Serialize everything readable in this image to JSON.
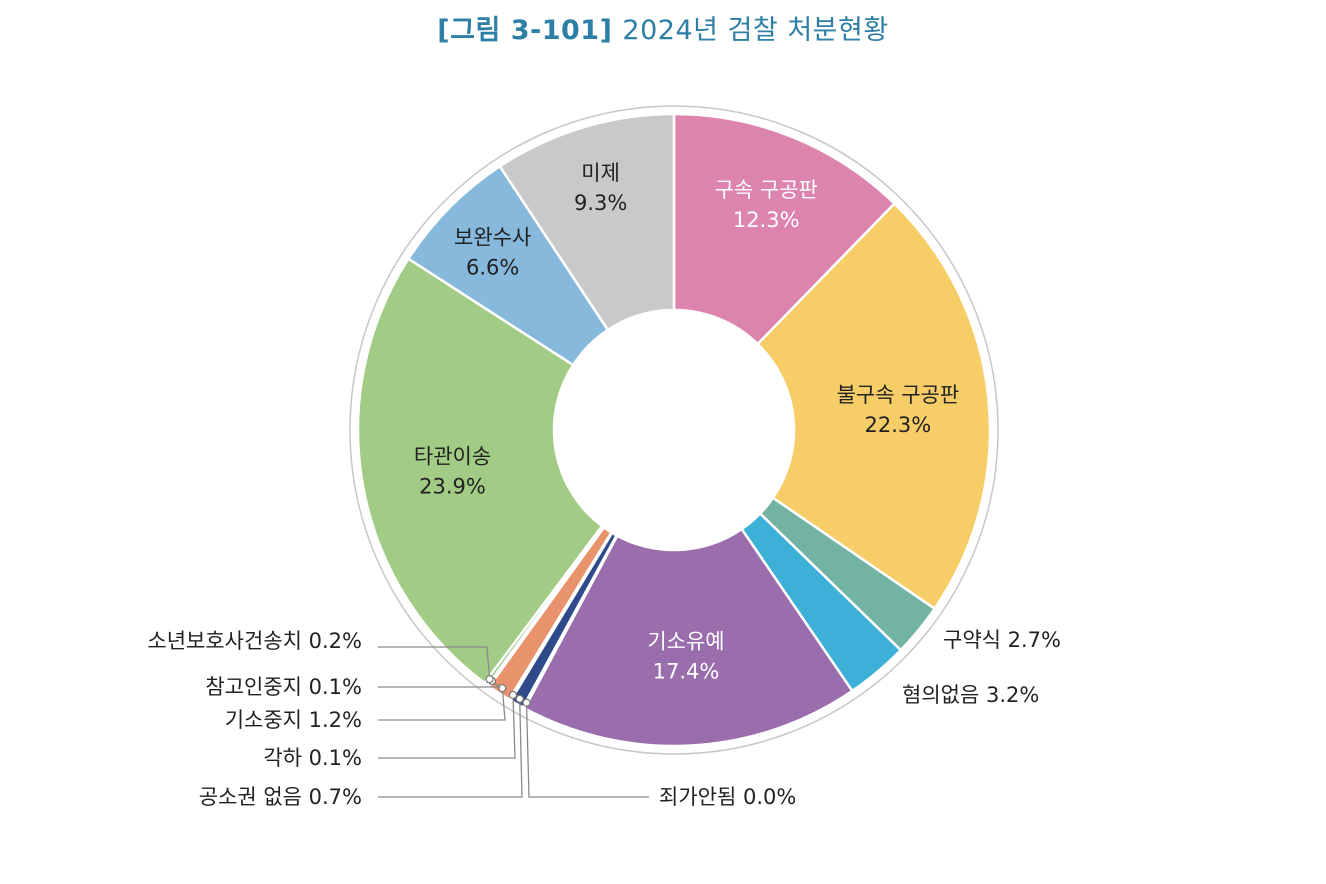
{
  "figure": {
    "number": "[그림 3-101]",
    "title": "2024년 검찰 처분현황"
  },
  "chart_data": {
    "type": "pie",
    "variant": "donut",
    "title": "2024년 검찰 처분현황",
    "unit": "%",
    "slices": [
      {
        "label": "구속 구공판",
        "value": 12.3,
        "value_text": "12.3%",
        "color": "#dc84ad",
        "label_place": "inside",
        "label_color": "light"
      },
      {
        "label": "불구속 구공판",
        "value": 22.3,
        "value_text": "22.3%",
        "color": "#f7cd67",
        "label_place": "inside"
      },
      {
        "label": "구약식",
        "value": 2.7,
        "value_text": "2.7%",
        "color": "#72b3a3",
        "label_place": "outside"
      },
      {
        "label": "혐의없음",
        "value": 3.2,
        "value_text": "3.2%",
        "color": "#3db0d8",
        "label_place": "outside"
      },
      {
        "label": "기소유예",
        "value": 17.4,
        "value_text": "17.4%",
        "color": "#9a6dad",
        "label_place": "inside",
        "label_color": "light"
      },
      {
        "label": "죄가안됨",
        "value": 0.0,
        "value_text": "0.0%",
        "color": "#6a6f9e",
        "label_place": "outside"
      },
      {
        "label": "공소권 없음",
        "value": 0.7,
        "value_text": "0.7%",
        "color": "#2f4a8a",
        "label_place": "outside"
      },
      {
        "label": "각하",
        "value": 0.1,
        "value_text": "0.1%",
        "color": "#5a8a8a",
        "label_place": "outside"
      },
      {
        "label": "기소중지",
        "value": 1.2,
        "value_text": "1.2%",
        "color": "#e9936c",
        "label_place": "outside"
      },
      {
        "label": "참고인중지",
        "value": 0.1,
        "value_text": "0.1%",
        "color": "#b9a97a",
        "label_place": "outside"
      },
      {
        "label": "소년보호사건송치",
        "value": 0.2,
        "value_text": "0.2%",
        "color": "#8fc07a",
        "label_place": "outside"
      },
      {
        "label": "타관이송",
        "value": 23.9,
        "value_text": "23.9%",
        "color": "#a2cb85",
        "label_place": "inside"
      },
      {
        "label": "보완수사",
        "value": 6.6,
        "value_text": "6.6%",
        "color": "#86b9dc",
        "label_place": "inside"
      },
      {
        "label": "미제",
        "value": 9.3,
        "value_text": "9.3%",
        "color": "#c9c9c9",
        "label_place": "inside"
      }
    ]
  }
}
